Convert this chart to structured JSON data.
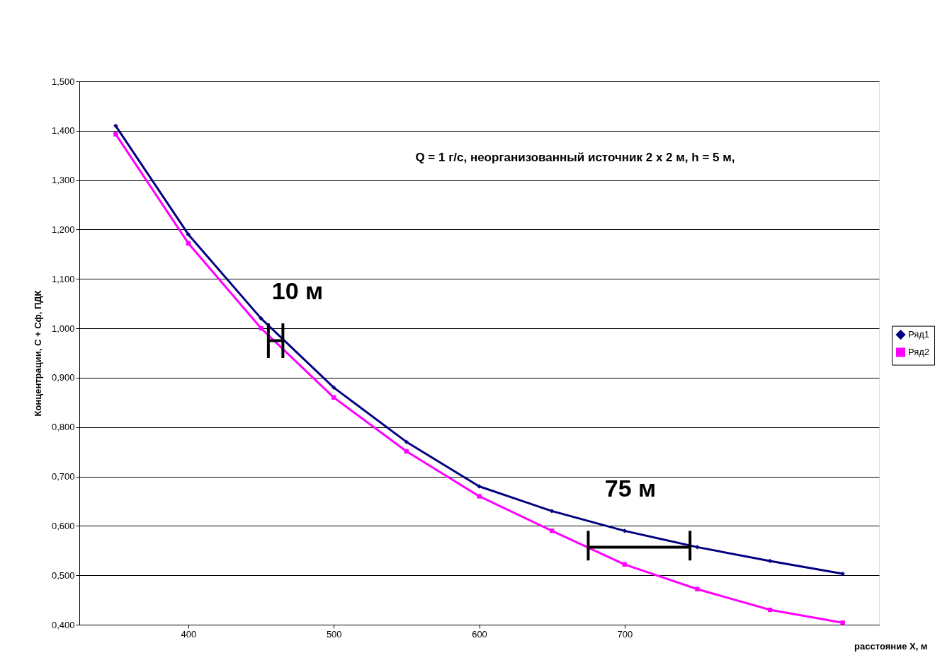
{
  "chart_data": {
    "type": "line",
    "xlabel": "расстояние X, м",
    "ylabel": "Концентрации, С + Сф, ПДК",
    "x": [
      350,
      400,
      450,
      500,
      550,
      600,
      650,
      700,
      750,
      800,
      850
    ],
    "series": [
      {
        "name": "Ряд1",
        "color": "#000080",
        "marker": "diamond",
        "values": [
          1.41,
          1.19,
          1.02,
          0.88,
          0.77,
          0.68,
          0.63,
          0.59,
          0.557,
          0.529,
          0.503
        ]
      },
      {
        "name": "Ряд2",
        "color": "#ff00ff",
        "marker": "square",
        "values": [
          1.393,
          1.172,
          1.0,
          0.86,
          0.751,
          0.66,
          0.59,
          0.522,
          0.472,
          0.43,
          0.404
        ]
      },
      {
        "color": "#000000",
        "x": [
          455,
          455,
          null,
          465,
          465,
          null,
          455,
          465
        ],
        "values": [
          1.01,
          0.94,
          null,
          1.01,
          0.94,
          null,
          0.975,
          0.975
        ]
      },
      {
        "color": "#000000",
        "x": [
          675,
          675,
          null,
          745,
          745,
          null,
          675,
          745
        ],
        "values": [
          0.59,
          0.53,
          null,
          0.59,
          0.53,
          null,
          0.557,
          0.557
        ]
      }
    ],
    "xlim": [
      325,
      875
    ],
    "xticks": [
      400,
      500,
      600,
      700
    ],
    "ylim": [
      0.4,
      1.5
    ],
    "yticks": [
      {
        "value": 0.4,
        "label": "0,400"
      },
      {
        "value": 0.5,
        "label": "0,500"
      },
      {
        "value": 0.6,
        "label": "0,600"
      },
      {
        "value": 0.7,
        "label": "0,700"
      },
      {
        "value": 0.8,
        "label": "0,800"
      },
      {
        "value": 0.9,
        "label": "0,900"
      },
      {
        "value": 1.0,
        "label": "1,000"
      },
      {
        "value": 1.1,
        "label": "1,100"
      },
      {
        "value": 1.2,
        "label": "1,200"
      },
      {
        "value": 1.3,
        "label": "1,300"
      },
      {
        "value": 1.4,
        "label": "1,400"
      },
      {
        "value": 1.5,
        "label": "1,500"
      }
    ],
    "grid": "y",
    "legend": "right",
    "annotations": [
      "Q = 1 г/с, неорганизованный источник 2 х 2 м, h = 5  м,",
      "10 м",
      "75 м"
    ]
  }
}
